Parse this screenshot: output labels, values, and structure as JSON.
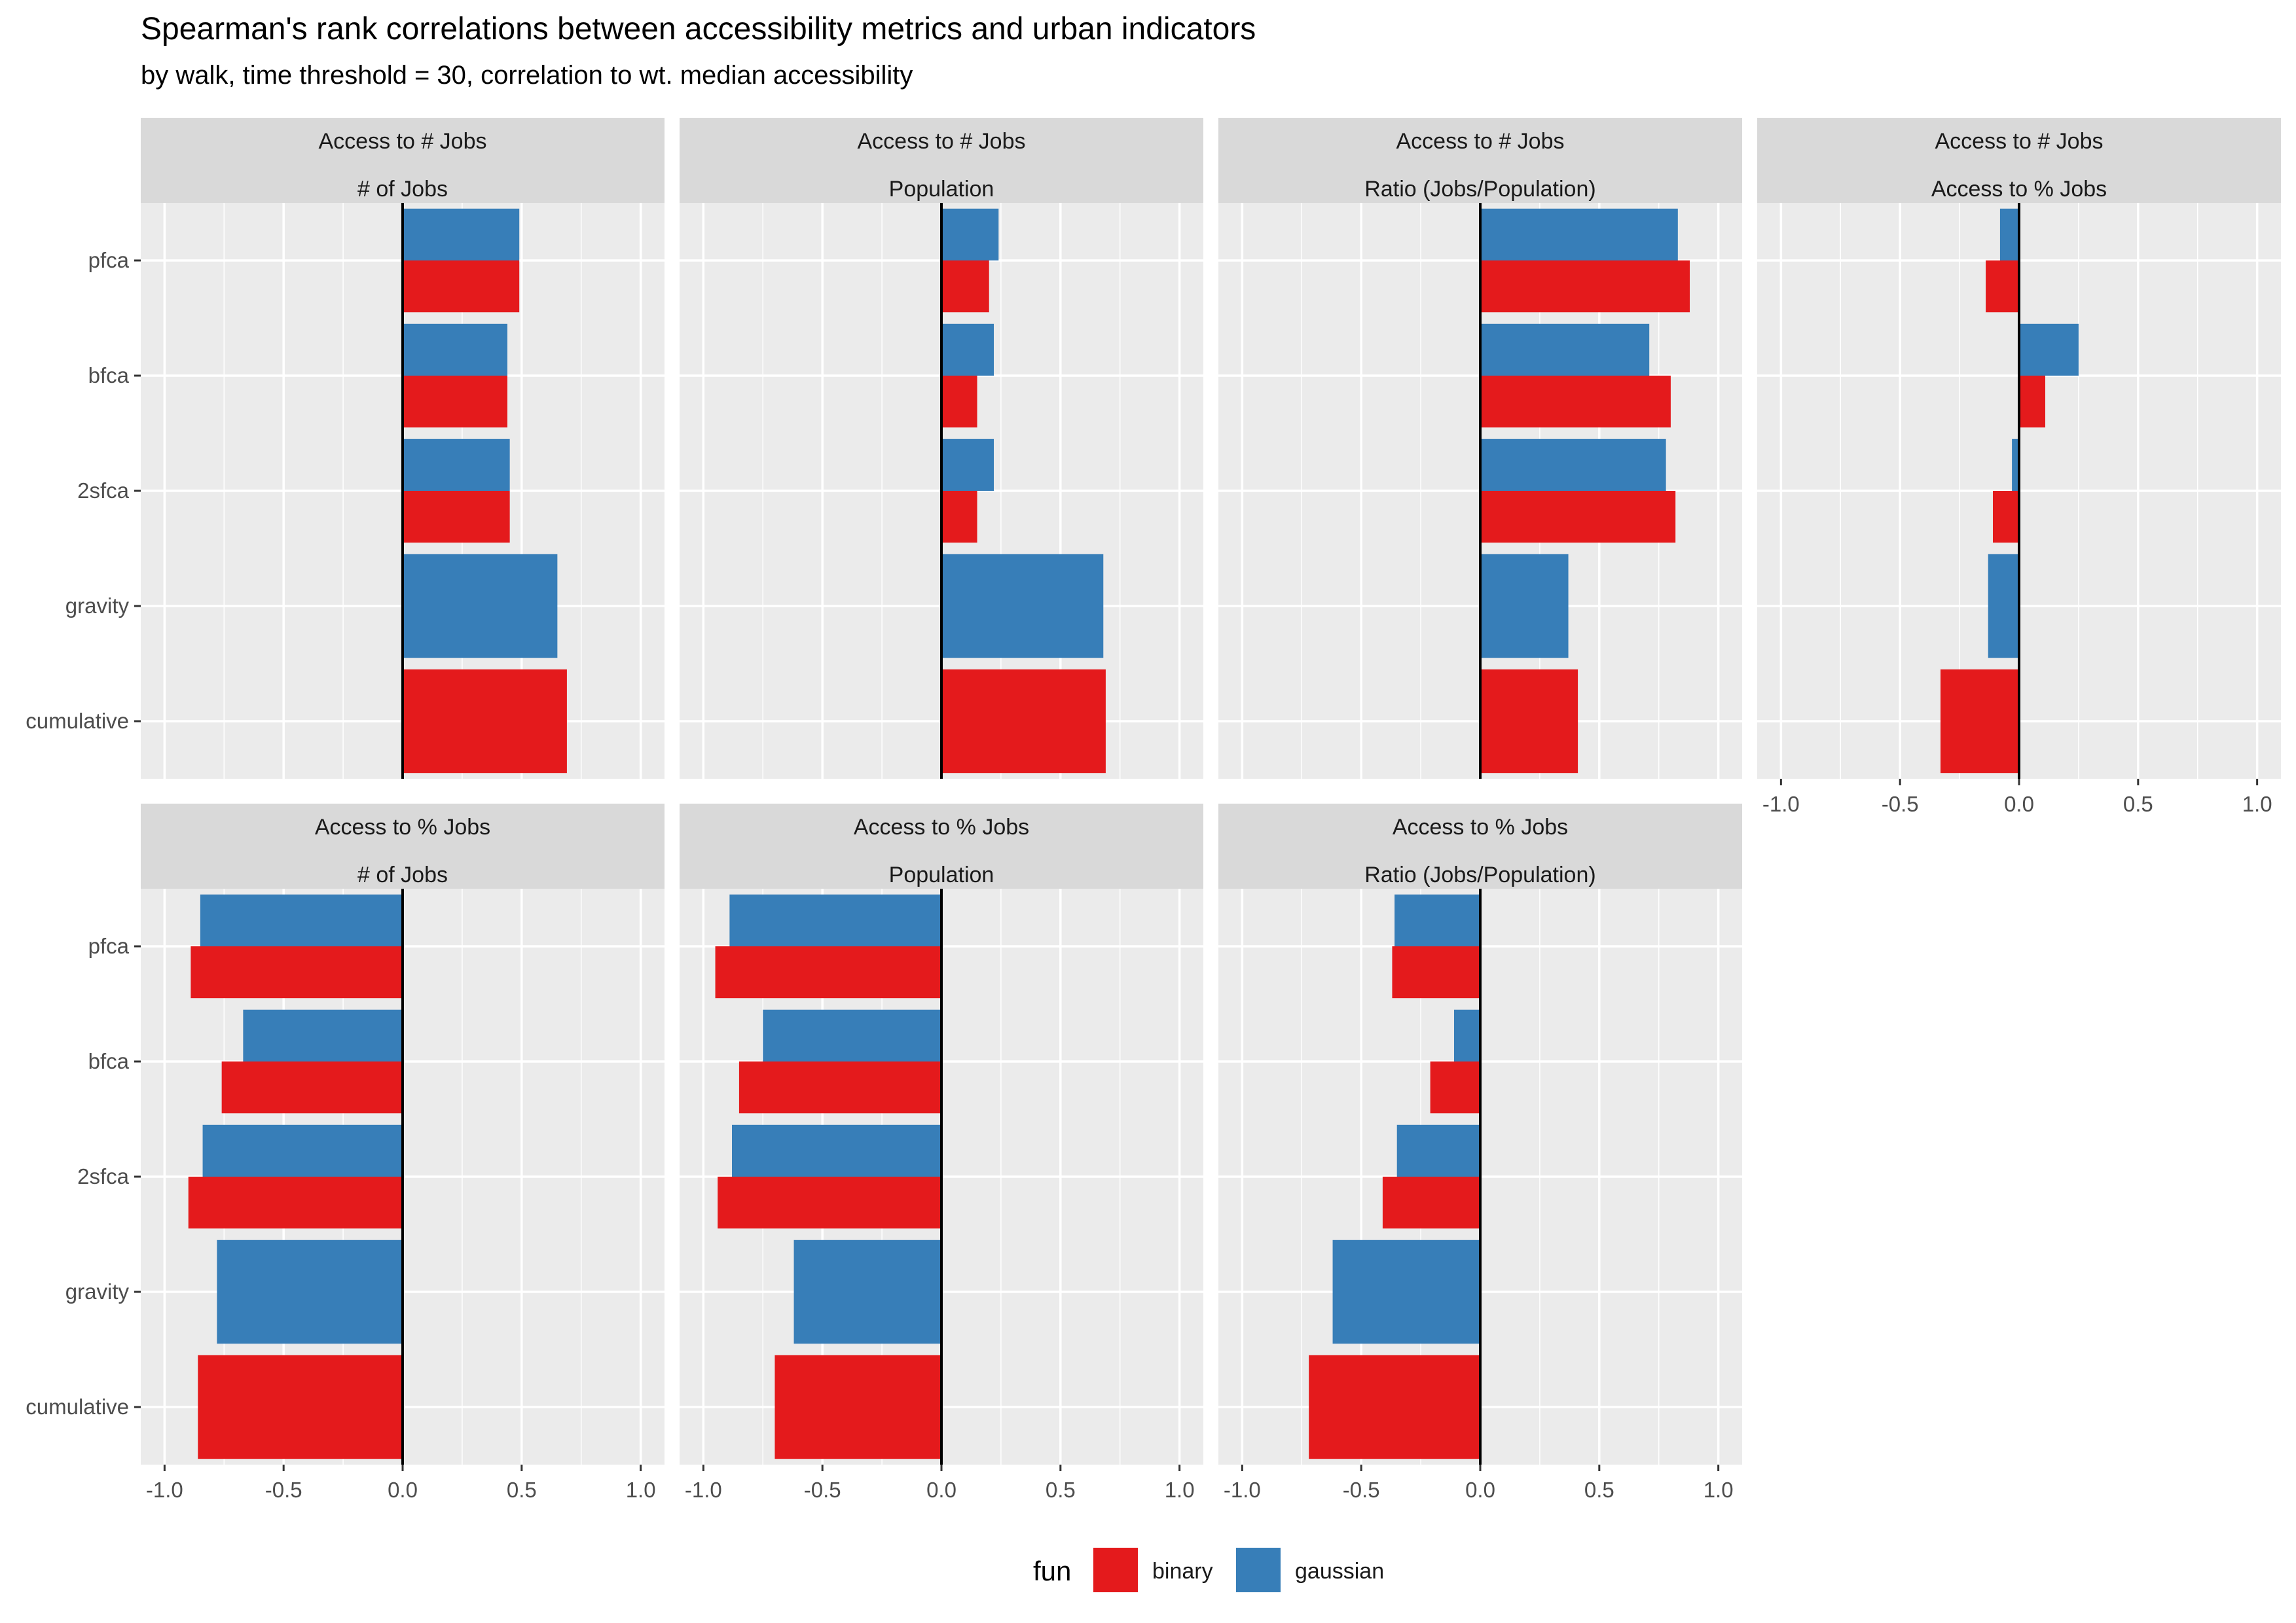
{
  "title": "Spearman's rank correlations between accessibility metrics and urban indicators",
  "subtitle": "by walk, time threshold = 30, correlation to wt. median accessibility",
  "colors": {
    "binary": "#E41A1C",
    "gaussian": "#377EB8",
    "panel_bg": "#EBEBEB",
    "strip_bg": "#D9D9D9",
    "grid": "#FFFFFF",
    "text": "#1A1A1A",
    "axis_text": "#4D4D4D"
  },
  "legend": {
    "title": "fun",
    "items": [
      {
        "key": "binary",
        "label": "binary"
      },
      {
        "key": "gaussian",
        "label": "gaussian"
      }
    ]
  },
  "chart_data": {
    "type": "bar",
    "orientation": "horizontal",
    "facet": "wrap",
    "categories": [
      "pfca",
      "bfca",
      "2sfca",
      "gravity",
      "cumulative"
    ],
    "xlim": [
      -1.1,
      1.1
    ],
    "xticks": [
      -1.0,
      -0.5,
      0.0,
      0.5,
      1.0
    ],
    "xtick_labels": [
      "-1.0",
      "-0.5",
      "0.0",
      "0.5",
      "1.0"
    ],
    "grid": true,
    "legend_position": "bottom",
    "panels": [
      {
        "strip_top": "Access to # Jobs",
        "strip_bottom": "# of Jobs",
        "series": [
          {
            "name": "binary",
            "values": [
              0.49,
              0.44,
              0.45,
              null,
              0.69
            ]
          },
          {
            "name": "gaussian",
            "values": [
              0.49,
              0.44,
              0.45,
              0.65,
              null
            ]
          }
        ]
      },
      {
        "strip_top": "Access to # Jobs",
        "strip_bottom": "Population",
        "series": [
          {
            "name": "binary",
            "values": [
              0.2,
              0.15,
              0.15,
              null,
              0.69
            ]
          },
          {
            "name": "gaussian",
            "values": [
              0.24,
              0.22,
              0.22,
              0.68,
              null
            ]
          }
        ]
      },
      {
        "strip_top": "Access to # Jobs",
        "strip_bottom": "Ratio (Jobs/Population)",
        "series": [
          {
            "name": "binary",
            "values": [
              0.88,
              0.8,
              0.82,
              null,
              0.41
            ]
          },
          {
            "name": "gaussian",
            "values": [
              0.83,
              0.71,
              0.78,
              0.37,
              null
            ]
          }
        ]
      },
      {
        "strip_top": "Access to # Jobs",
        "strip_bottom": "Access to % Jobs",
        "series": [
          {
            "name": "binary",
            "values": [
              -0.14,
              0.11,
              -0.11,
              null,
              -0.33
            ]
          },
          {
            "name": "gaussian",
            "values": [
              -0.08,
              0.25,
              -0.03,
              -0.13,
              null
            ]
          }
        ]
      },
      {
        "strip_top": "Access to % Jobs",
        "strip_bottom": "# of Jobs",
        "series": [
          {
            "name": "binary",
            "values": [
              -0.89,
              -0.76,
              -0.9,
              null,
              -0.86
            ]
          },
          {
            "name": "gaussian",
            "values": [
              -0.85,
              -0.67,
              -0.84,
              -0.78,
              null
            ]
          }
        ]
      },
      {
        "strip_top": "Access to % Jobs",
        "strip_bottom": "Population",
        "series": [
          {
            "name": "binary",
            "values": [
              -0.95,
              -0.85,
              -0.94,
              null,
              -0.7
            ]
          },
          {
            "name": "gaussian",
            "values": [
              -0.89,
              -0.75,
              -0.88,
              -0.62,
              null
            ]
          }
        ]
      },
      {
        "strip_top": "Access to % Jobs",
        "strip_bottom": "Ratio (Jobs/Population)",
        "series": [
          {
            "name": "binary",
            "values": [
              -0.37,
              -0.21,
              -0.41,
              null,
              -0.72
            ]
          },
          {
            "name": "gaussian",
            "values": [
              -0.36,
              -0.11,
              -0.35,
              -0.62,
              null
            ]
          }
        ]
      }
    ]
  }
}
